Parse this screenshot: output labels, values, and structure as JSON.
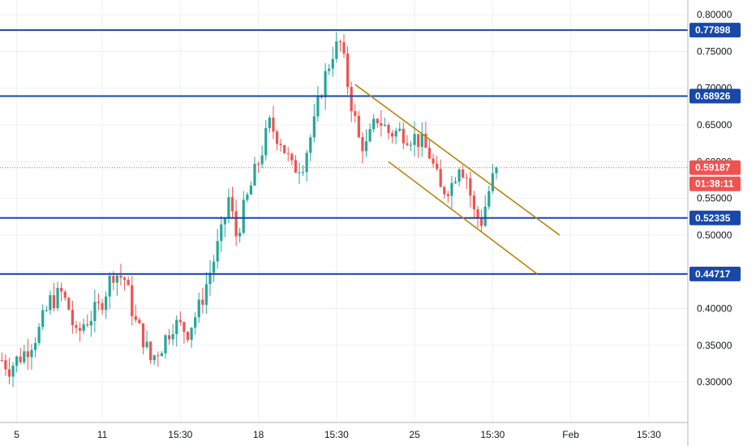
{
  "chart_data": {
    "type": "candlestick",
    "y_ticks": [
      "0.80000",
      "0.75000",
      "0.70000",
      "0.65000",
      "0.60000",
      "0.55000",
      "0.50000",
      "0.45000",
      "0.40000",
      "0.35000",
      "0.30000"
    ],
    "y_tick_values": [
      0.8,
      0.75,
      0.7,
      0.65,
      0.6,
      0.55,
      0.5,
      0.45,
      0.4,
      0.35,
      0.3
    ],
    "ylim": [
      0.245,
      0.82
    ],
    "x_ticks": [
      "5",
      "11",
      "15:30",
      "18",
      "15:30",
      "25",
      "15:30",
      "Feb",
      "15:30"
    ],
    "x_tick_index": [
      4,
      27,
      48,
      69,
      90,
      111,
      132,
      153,
      174
    ],
    "n_bars": 185,
    "last_price": 0.59187,
    "countdown": "01:38:11",
    "levels": [
      {
        "value": 0.77898,
        "label": "0.77898"
      },
      {
        "value": 0.68926,
        "label": "0.68926"
      },
      {
        "value": 0.52335,
        "label": "0.52335"
      },
      {
        "value": 0.44717,
        "label": "0.44717"
      }
    ],
    "channel": [
      {
        "from": [
          95,
          0.705
        ],
        "to": [
          150,
          0.5
        ]
      },
      {
        "from": [
          104,
          0.6
        ],
        "to": [
          144,
          0.447
        ]
      }
    ],
    "anchors": [
      [
        0,
        0.33
      ],
      [
        2,
        0.32
      ],
      [
        6,
        0.34
      ],
      [
        10,
        0.37
      ],
      [
        13,
        0.41
      ],
      [
        16,
        0.42
      ],
      [
        18,
        0.4
      ],
      [
        20,
        0.36
      ],
      [
        22,
        0.38
      ],
      [
        26,
        0.4
      ],
      [
        30,
        0.45
      ],
      [
        33,
        0.44
      ],
      [
        36,
        0.38
      ],
      [
        38,
        0.36
      ],
      [
        40,
        0.33
      ],
      [
        43,
        0.35
      ],
      [
        46,
        0.38
      ],
      [
        50,
        0.37
      ],
      [
        53,
        0.4
      ],
      [
        56,
        0.45
      ],
      [
        59,
        0.5
      ],
      [
        61,
        0.55
      ],
      [
        63,
        0.5
      ],
      [
        66,
        0.55
      ],
      [
        69,
        0.6
      ],
      [
        72,
        0.65
      ],
      [
        75,
        0.63
      ],
      [
        78,
        0.59
      ],
      [
        81,
        0.6
      ],
      [
        84,
        0.65
      ],
      [
        86,
        0.7
      ],
      [
        89,
        0.75
      ],
      [
        91,
        0.76
      ],
      [
        94,
        0.68
      ],
      [
        96,
        0.63
      ],
      [
        98,
        0.62
      ],
      [
        101,
        0.66
      ],
      [
        104,
        0.64
      ],
      [
        108,
        0.64
      ],
      [
        112,
        0.63
      ],
      [
        115,
        0.61
      ],
      [
        118,
        0.56
      ],
      [
        121,
        0.57
      ],
      [
        123,
        0.6
      ],
      [
        125,
        0.58
      ],
      [
        127,
        0.53
      ],
      [
        129,
        0.52
      ],
      [
        131,
        0.56
      ],
      [
        133,
        0.59187
      ]
    ],
    "colors": {
      "up": "#26a69a",
      "down": "#ef5350",
      "level": "#1848a8",
      "channel": "#b8860b",
      "last": "#ef5350"
    }
  }
}
